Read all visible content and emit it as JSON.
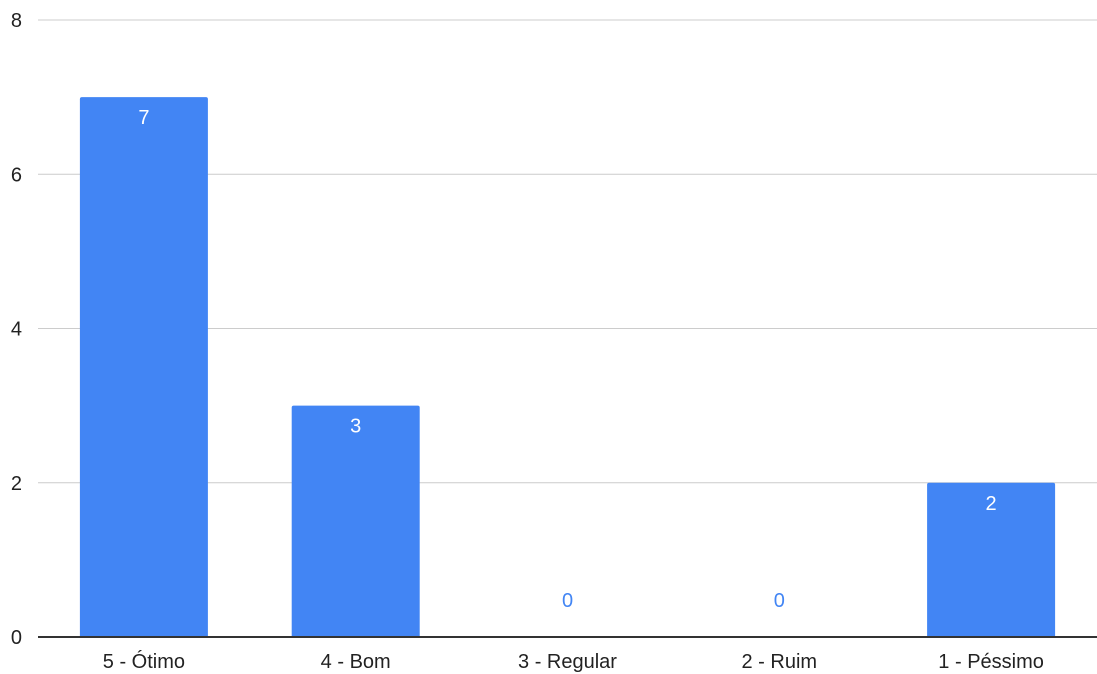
{
  "chart_data": {
    "type": "bar",
    "categories": [
      "5 - Ótimo",
      "4 - Bom",
      "3 - Regular",
      "2 - Ruim",
      "1 - Péssimo"
    ],
    "values": [
      7,
      3,
      0,
      0,
      2
    ],
    "title": "",
    "xlabel": "",
    "ylabel": "",
    "ylim": [
      0,
      8
    ],
    "yticks": [
      "0",
      "2",
      "4",
      "6",
      "8"
    ],
    "data_labels": [
      "7",
      "3",
      "0",
      "0",
      "2"
    ],
    "grid": true,
    "legend": "none",
    "colors": {
      "bar": "#4285f4",
      "gridline": "#cccccc",
      "axis": "#333333",
      "label_inside": "#ffffff",
      "label_outside": "#4285f4"
    }
  }
}
